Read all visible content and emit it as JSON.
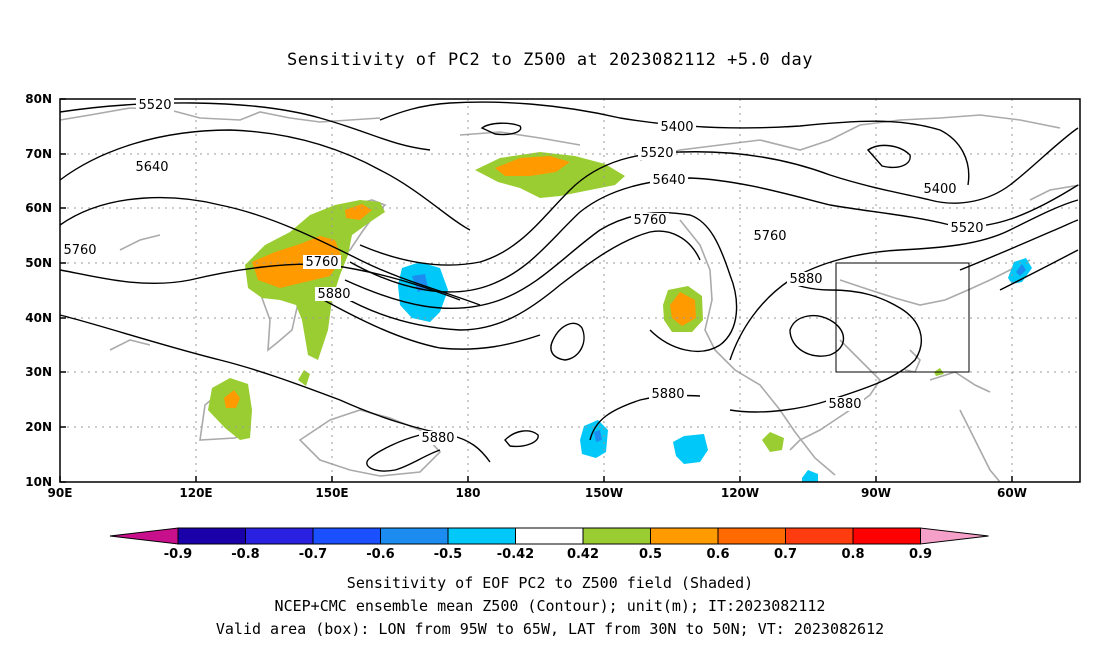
{
  "title": "Sensitivity of PC2 to Z500 at 2023082112 +5.0 day",
  "lat_ticks": [
    "80N",
    "70N",
    "60N",
    "50N",
    "40N",
    "30N",
    "20N",
    "10N"
  ],
  "lon_ticks": [
    "90E",
    "120E",
    "150E",
    "180",
    "150W",
    "120W",
    "90W",
    "60W"
  ],
  "contour_labels": [
    "5520",
    "5640",
    "5760",
    "5760",
    "5880",
    "5400",
    "5520",
    "5640",
    "5760",
    "5760",
    "5880",
    "5400",
    "5520",
    "5880",
    "5880",
    "5880"
  ],
  "colorbar": {
    "labels": [
      "-0.9",
      "-0.8",
      "-0.7",
      "-0.6",
      "-0.5",
      "-0.42",
      "0.42",
      "0.5",
      "0.6",
      "0.7",
      "0.8",
      "0.9"
    ],
    "colors": [
      "#1a00a8",
      "#2a20e0",
      "#1a50ff",
      "#1c8cf0",
      "#00c8f8",
      "#ffffff",
      "#9acd32",
      "#ff9a00",
      "#ff6a00",
      "#ff3c10",
      "#ff0000"
    ],
    "low_arrow_color": "#c8108c",
    "high_arrow_color": "#f4a0c8"
  },
  "valid_box": {
    "lon_range": [
      "95W",
      "65W"
    ],
    "lat_range": [
      "30N",
      "50N"
    ]
  },
  "footer": {
    "line1": "Sensitivity of EOF PC2 to Z500 field (Shaded)",
    "line2": "NCEP+CMC ensemble mean Z500 (Contour); unit(m); IT:2023082112",
    "line3": "Valid area (box): LON from 95W to 65W, LAT from 30N to 50N; VT: 2023082612"
  },
  "colors": {
    "contour": "#000000",
    "coast": "#aaaaaa",
    "grid": "#999999"
  }
}
